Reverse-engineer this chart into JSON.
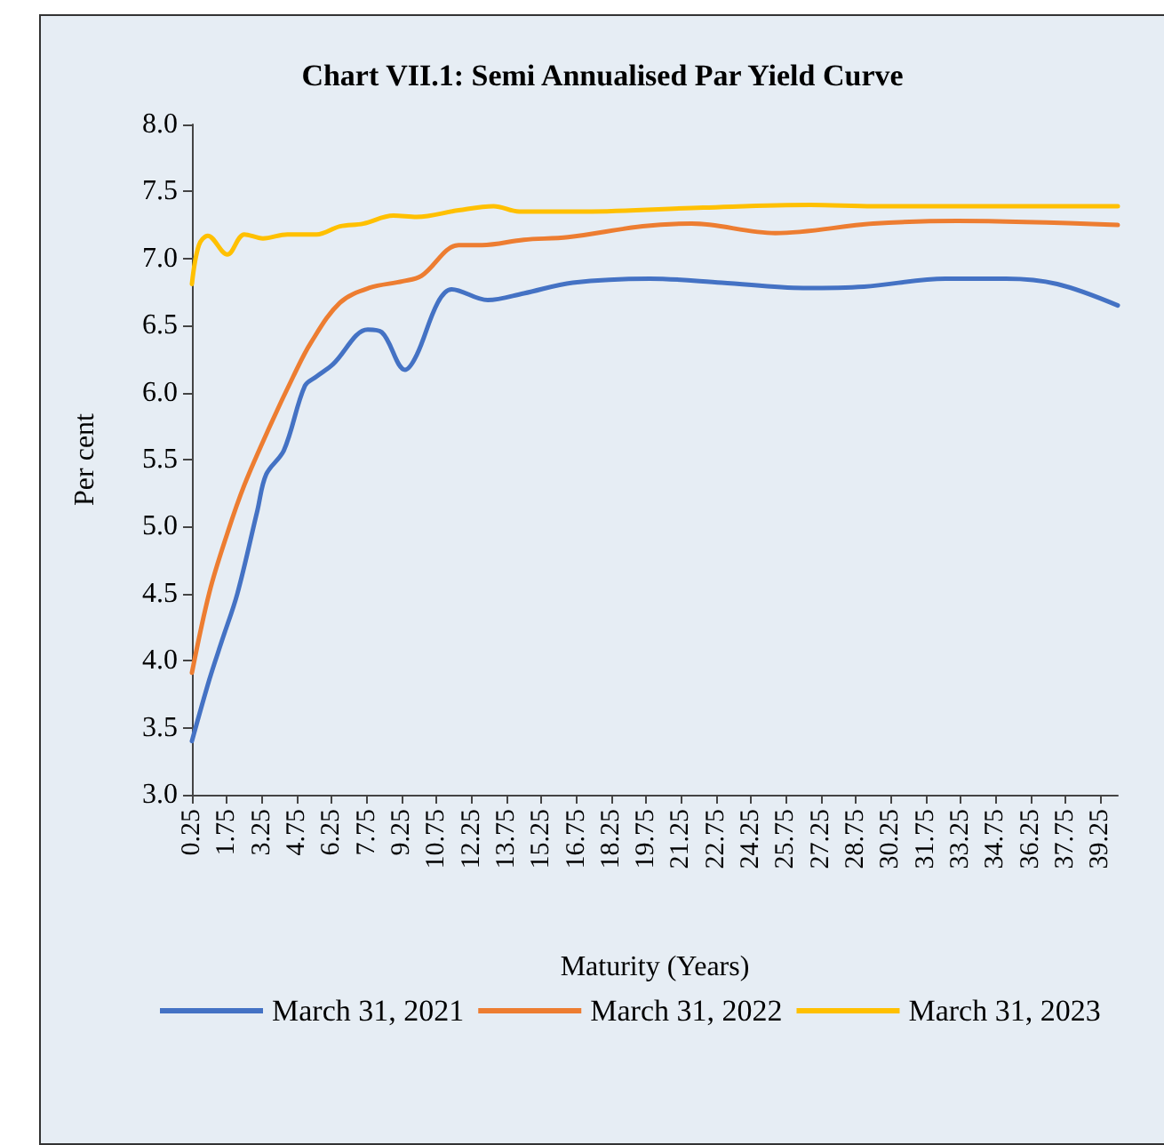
{
  "chart_data": {
    "type": "line",
    "title": "Chart VII.1: Semi Annualised Par Yield Curve",
    "xlabel": "Maturity (Years)",
    "ylabel": "Per cent",
    "series": [
      {
        "name": "March 31, 2021",
        "color": "#4472c4",
        "x": [
          0.25,
          1.0,
          1.54,
          2.2,
          3.06,
          3.44,
          4.2,
          5.1,
          5.6,
          6.3,
          7.8,
          8.4,
          9.4,
          9.9,
          10.8,
          11.4,
          12.95,
          14.5,
          16.6,
          19.9,
          23.0,
          26.5,
          29.1,
          32.6,
          35.2,
          37.4,
          40
        ],
        "values": [
          3.4,
          3.86,
          4.15,
          4.5,
          5.12,
          5.39,
          5.57,
          6.05,
          6.12,
          6.21,
          6.47,
          6.45,
          6.17,
          6.28,
          6.67,
          6.77,
          6.69,
          6.74,
          6.82,
          6.85,
          6.82,
          6.78,
          6.79,
          6.85,
          6.85,
          6.81,
          6.65
        ]
      },
      {
        "name": "March 31, 2022",
        "color": "#ed7d31",
        "x": [
          0.25,
          1.0,
          1.77,
          2.5,
          3.6,
          4.6,
          5.35,
          6.6,
          7.85,
          9.3,
          10.1,
          11.7,
          12.7,
          14.5,
          16.4,
          19.6,
          21.7,
          25.3,
          29.5,
          33.1,
          40
        ],
        "values": [
          3.91,
          4.51,
          4.95,
          5.31,
          5.75,
          6.12,
          6.37,
          6.67,
          6.78,
          6.83,
          6.87,
          7.1,
          7.1,
          7.14,
          7.16,
          7.24,
          7.26,
          7.19,
          7.26,
          7.28,
          7.25
        ]
      },
      {
        "name": "March 31, 2023",
        "color": "#ffc000",
        "x": [
          0.25,
          0.55,
          0.93,
          1.77,
          2.5,
          3.3,
          4.35,
          5.6,
          6.6,
          7.6,
          8.9,
          9.9,
          11.7,
          13.2,
          14.3,
          17.1,
          22.2,
          26.8,
          29.5,
          40
        ],
        "values": [
          6.81,
          7.1,
          7.17,
          7.03,
          7.18,
          7.15,
          7.18,
          7.18,
          7.24,
          7.26,
          7.32,
          7.31,
          7.36,
          7.39,
          7.35,
          7.35,
          7.38,
          7.4,
          7.39,
          7.39
        ]
      }
    ],
    "xlim": [
      0.25,
      40
    ],
    "xticks": [
      0.25,
      1.75,
      3.25,
      4.75,
      6.25,
      7.75,
      9.25,
      10.75,
      12.25,
      13.75,
      15.25,
      16.75,
      18.25,
      19.75,
      21.25,
      22.75,
      24.25,
      25.75,
      27.25,
      28.75,
      30.25,
      31.75,
      33.25,
      34.75,
      36.25,
      37.75,
      39.25
    ],
    "ylim": [
      3.0,
      8.0
    ],
    "yticks": [
      {
        "value": 3,
        "label": "3.0"
      },
      {
        "value": 3.5,
        "label": "3.5"
      },
      {
        "value": 4,
        "label": "4.0"
      },
      {
        "value": 4.5,
        "label": "4.5"
      },
      {
        "value": 5,
        "label": "5.0"
      },
      {
        "value": 5.5,
        "label": "5.5"
      },
      {
        "value": 6,
        "label": "6.0"
      },
      {
        "value": 6.5,
        "label": "6.5"
      },
      {
        "value": 7,
        "label": "7.0"
      },
      {
        "value": 7.5,
        "label": "7.5"
      },
      {
        "value": 8,
        "label": "8.0"
      }
    ],
    "grid": false,
    "legend": "bottom",
    "marker": "none",
    "line_style": "solid"
  }
}
